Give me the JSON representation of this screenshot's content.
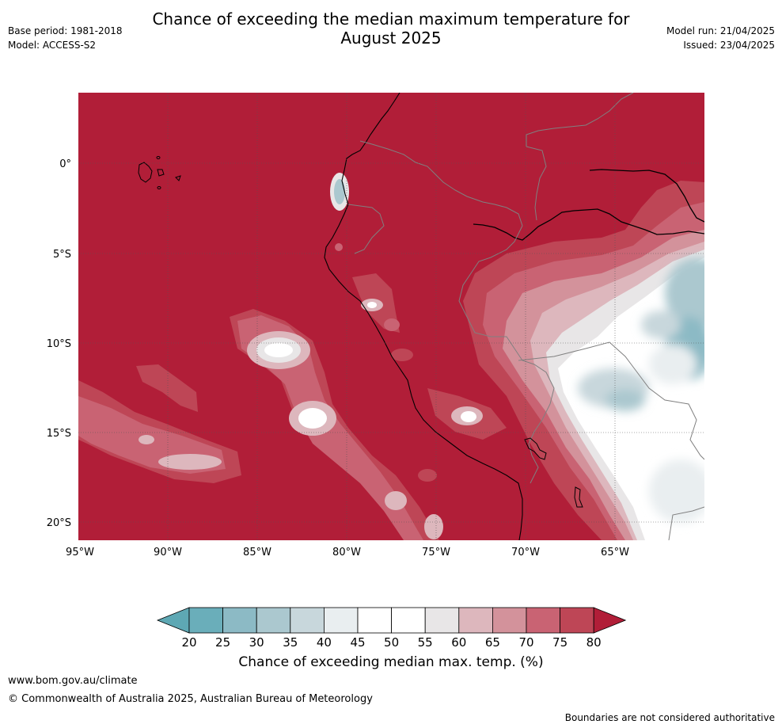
{
  "header": {
    "title_line1": "Chance of exceeding the median maximum temperature for",
    "title_line2": "August 2025",
    "base_period": "Base period: 1981-2018",
    "model": "Model: ACCESS-S2",
    "model_run": "Model run: 21/04/2025",
    "issued": "Issued: 23/04/2025"
  },
  "map": {
    "lat_labels": [
      "0°",
      "5°S",
      "10°S",
      "15°S",
      "20°S"
    ],
    "lon_labels": [
      "95°W",
      "90°W",
      "85°W",
      "80°W",
      "75°W",
      "70°W",
      "65°W"
    ],
    "colors": {
      "ocean_fill": "#b11e38",
      "coast_line": "#000000",
      "border_line": "#808080",
      "grid_line": "#555555"
    }
  },
  "colorbar": {
    "ticks": [
      "20",
      "25",
      "30",
      "35",
      "40",
      "45",
      "50",
      "55",
      "60",
      "65",
      "70",
      "75",
      "80"
    ],
    "colors": [
      "#5ea8b4",
      "#6aaeba",
      "#8cbac5",
      "#abc8cf",
      "#c8d7dc",
      "#e9eef0",
      "#ffffff",
      "#ffffff",
      "#e8e6e7",
      "#ddb7bd",
      "#d3929b",
      "#c96373",
      "#be4656",
      "#b11e38"
    ],
    "label": "Chance of exceeding median max. temp. (%)"
  },
  "footer": {
    "url": "www.bom.gov.au/climate",
    "copyright": "© Commonwealth of Australia 2025, Australian Bureau of Meteorology",
    "note": "Boundaries are not considered authoritative"
  }
}
